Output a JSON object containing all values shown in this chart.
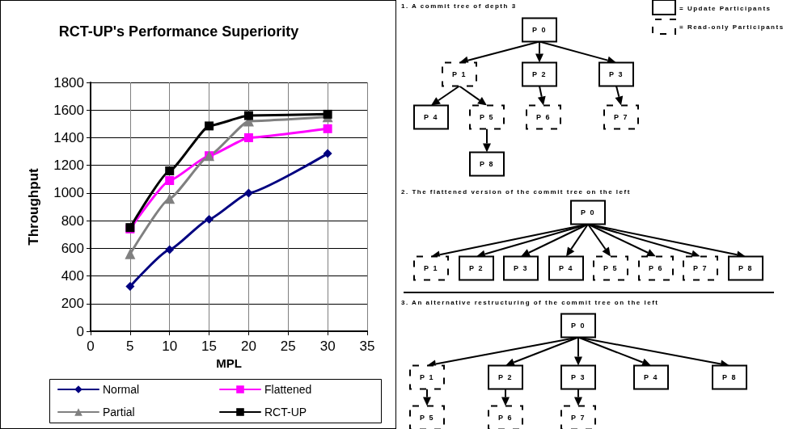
{
  "chart_data": [
    {
      "type": "line",
      "title": "RCT-UP's Performance Superiority",
      "xlabel": "MPL",
      "ylabel": "Throughput",
      "x": [
        5,
        10,
        15,
        20,
        30
      ],
      "series": [
        {
          "name": "Normal",
          "color": "#000080",
          "marker": "diamond",
          "values": [
            325,
            590,
            810,
            1000,
            1285
          ]
        },
        {
          "name": "Flattened",
          "color": "#ff00ff",
          "marker": "square",
          "values": [
            740,
            1090,
            1270,
            1400,
            1465
          ]
        },
        {
          "name": "Partial",
          "color": "#808080",
          "marker": "triangle",
          "values": [
            560,
            960,
            1270,
            1520,
            1550
          ]
        },
        {
          "name": "RCT-UP",
          "color": "#000000",
          "marker": "square",
          "values": [
            750,
            1160,
            1485,
            1560,
            1570
          ]
        }
      ],
      "xlim": [
        0,
        35
      ],
      "xticks": [
        0,
        5,
        10,
        15,
        20,
        25,
        30,
        35
      ],
      "ylim": [
        0,
        1800
      ],
      "yticks": [
        0,
        200,
        400,
        600,
        800,
        1000,
        1200,
        1400,
        1600,
        1800
      ],
      "grid": true,
      "legend": "bottom",
      "line_style": "solid"
    },
    {
      "type": "other",
      "annotations": [
        "1. A commit tree of depth 3",
        "= Update Participants",
        "= Read-only Participants",
        "2. The flattened version of the commit tree on the left",
        "3. An alternative restructuring of the commit tree on the left",
        "P 0",
        "P 1",
        "P 2",
        "P 3",
        "P 4",
        "P 5",
        "P 6",
        "P 7",
        "P 8",
        "P 0",
        "P 1",
        "P 2",
        "P 3",
        "P 4",
        "P 5",
        "P 6",
        "P 7",
        "P 8",
        "P 0",
        "P 1",
        "P 2",
        "P 3",
        "P 4",
        "P 8",
        "P 5",
        "P 6",
        "P 7"
      ]
    }
  ]
}
